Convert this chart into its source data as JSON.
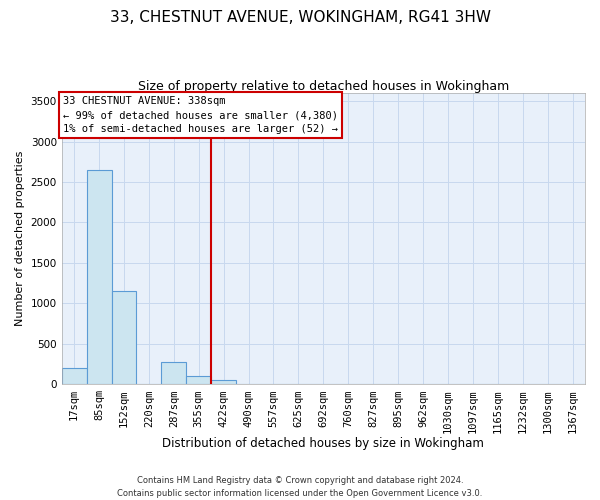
{
  "title": "33, CHESTNUT AVENUE, WOKINGHAM, RG41 3HW",
  "subtitle": "Size of property relative to detached houses in Wokingham",
  "xlabel": "Distribution of detached houses by size in Wokingham",
  "ylabel": "Number of detached properties",
  "bin_labels": [
    "17sqm",
    "85sqm",
    "152sqm",
    "220sqm",
    "287sqm",
    "355sqm",
    "422sqm",
    "490sqm",
    "557sqm",
    "625sqm",
    "692sqm",
    "760sqm",
    "827sqm",
    "895sqm",
    "962sqm",
    "1030sqm",
    "1097sqm",
    "1165sqm",
    "1232sqm",
    "1300sqm",
    "1367sqm"
  ],
  "bar_heights": [
    200,
    2650,
    1150,
    0,
    270,
    100,
    50,
    0,
    0,
    0,
    0,
    0,
    0,
    0,
    0,
    0,
    0,
    0,
    0,
    0,
    0
  ],
  "bar_color": "#cce5f0",
  "bar_edge_color": "#5b9bd5",
  "property_line_x": 5.5,
  "property_line_color": "#cc0000",
  "annotation_text": "33 CHESTNUT AVENUE: 338sqm\n← 99% of detached houses are smaller (4,380)\n1% of semi-detached houses are larger (52) →",
  "annotation_box_color": "#cc0000",
  "ylim": [
    0,
    3600
  ],
  "yticks": [
    0,
    500,
    1000,
    1500,
    2000,
    2500,
    3000,
    3500
  ],
  "grid_color": "#c8d8ee",
  "background_color": "#e8f0fa",
  "footer_text": "Contains HM Land Registry data © Crown copyright and database right 2024.\nContains public sector information licensed under the Open Government Licence v3.0.",
  "title_fontsize": 11,
  "subtitle_fontsize": 9,
  "xlabel_fontsize": 8.5,
  "ylabel_fontsize": 8,
  "tick_fontsize": 7.5,
  "annotation_fontsize": 7.5
}
